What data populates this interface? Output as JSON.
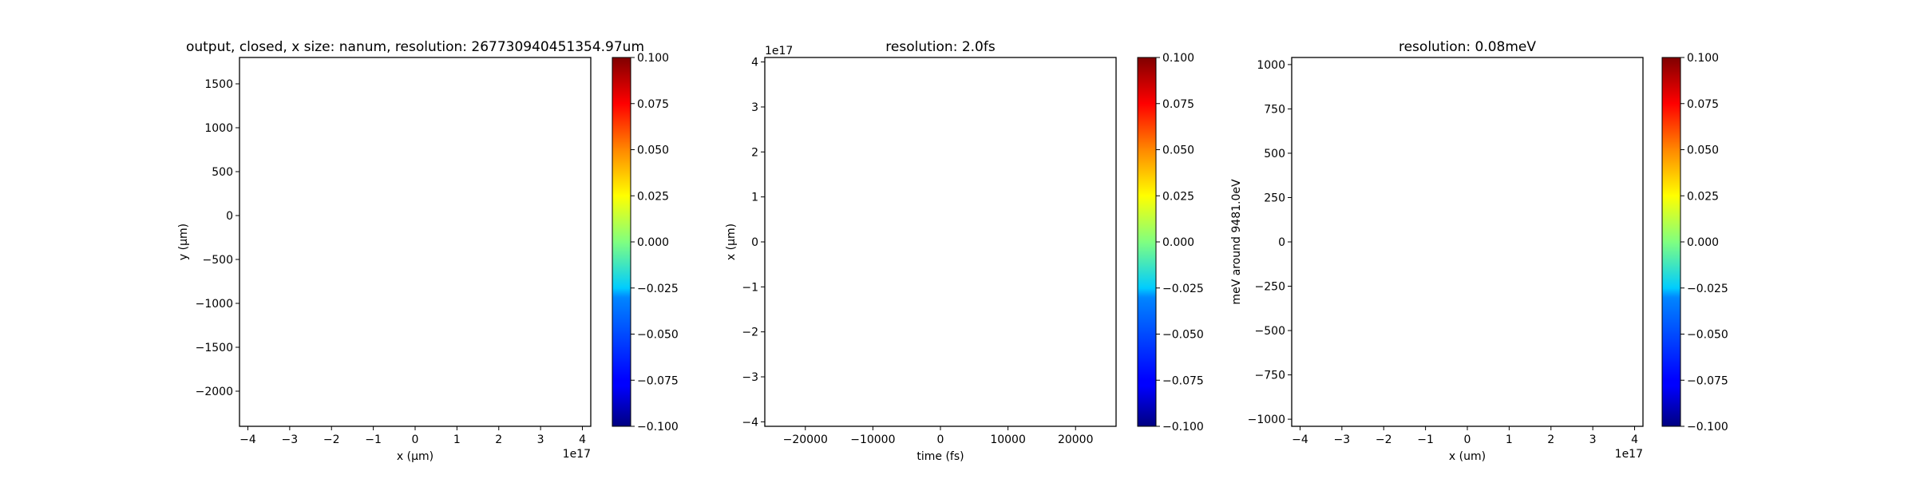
{
  "chart_data": [
    {
      "type": "heatmap",
      "title": "output, closed, x size: nanum, resolution: 267730940451354.97um",
      "xlabel": "x (μm)",
      "ylabel": "y (μm)",
      "xlim": [
        -4.2,
        4.2
      ],
      "ylim": [
        -2400,
        1800
      ],
      "xticks": [
        -4,
        -3,
        -2,
        -1,
        0,
        1,
        2,
        3,
        4
      ],
      "xtick_labels": [
        "−4",
        "−3",
        "−2",
        "−1",
        "0",
        "1",
        "2",
        "3",
        "4"
      ],
      "x_offset_label": "1e17",
      "yticks": [
        1500,
        1000,
        500,
        0,
        -500,
        -1000,
        -1500,
        -2000
      ],
      "ytick_labels": [
        "1500",
        "1000",
        "500",
        "0",
        "−500",
        "−1000",
        "−1500",
        "−2000"
      ],
      "y_offset_label": "",
      "values": [],
      "colorbar": {
        "colormap": "jet",
        "range": [
          -0.1,
          0.1
        ],
        "ticks": [
          0.1,
          0.075,
          0.05,
          0.025,
          0.0,
          -0.025,
          -0.05,
          -0.075,
          -0.1
        ],
        "tick_labels": [
          "0.100",
          "0.075",
          "0.050",
          "0.025",
          "0.000",
          "−0.025",
          "−0.050",
          "−0.075",
          "−0.100"
        ]
      }
    },
    {
      "type": "heatmap",
      "title": "resolution: 2.0fs",
      "xlabel": "time (fs)",
      "ylabel": "x (μm)",
      "xlim": [
        -26000,
        26000
      ],
      "ylim": [
        -4.1,
        4.1
      ],
      "xticks": [
        -20000,
        -10000,
        0,
        10000,
        20000
      ],
      "xtick_labels": [
        "−20000",
        "−10000",
        "0",
        "10000",
        "20000"
      ],
      "x_offset_label": "",
      "yticks": [
        4,
        3,
        2,
        1,
        0,
        -1,
        -2,
        -3,
        -4
      ],
      "ytick_labels": [
        "4",
        "3",
        "2",
        "1",
        "0",
        "−1",
        "−2",
        "−3",
        "−4"
      ],
      "y_offset_label": "1e17",
      "values": [],
      "colorbar": {
        "colormap": "jet",
        "range": [
          -0.1,
          0.1
        ],
        "ticks": [
          0.1,
          0.075,
          0.05,
          0.025,
          0.0,
          -0.025,
          -0.05,
          -0.075,
          -0.1
        ],
        "tick_labels": [
          "0.100",
          "0.075",
          "0.050",
          "0.025",
          "0.000",
          "−0.025",
          "−0.050",
          "−0.075",
          "−0.100"
        ]
      }
    },
    {
      "type": "heatmap",
      "title": "resolution: 0.08meV",
      "xlabel": "x (um)",
      "ylabel": "meV around 9481.0eV",
      "xlim": [
        -4.2,
        4.2
      ],
      "ylim": [
        -1040,
        1040
      ],
      "xticks": [
        -4,
        -3,
        -2,
        -1,
        0,
        1,
        2,
        3,
        4
      ],
      "xtick_labels": [
        "−4",
        "−3",
        "−2",
        "−1",
        "0",
        "1",
        "2",
        "3",
        "4"
      ],
      "x_offset_label": "1e17",
      "yticks": [
        1000,
        750,
        500,
        250,
        0,
        -250,
        -500,
        -750,
        -1000
      ],
      "ytick_labels": [
        "1000",
        "750",
        "500",
        "250",
        "0",
        "−250",
        "−500",
        "−750",
        "−1000"
      ],
      "y_offset_label": "",
      "values": [],
      "colorbar": {
        "colormap": "jet",
        "range": [
          -0.1,
          0.1
        ],
        "ticks": [
          0.1,
          0.075,
          0.05,
          0.025,
          0.0,
          -0.025,
          -0.05,
          -0.075,
          -0.1
        ],
        "tick_labels": [
          "0.100",
          "0.075",
          "0.050",
          "0.025",
          "0.000",
          "−0.025",
          "−0.050",
          "−0.075",
          "−0.100"
        ]
      }
    }
  ]
}
